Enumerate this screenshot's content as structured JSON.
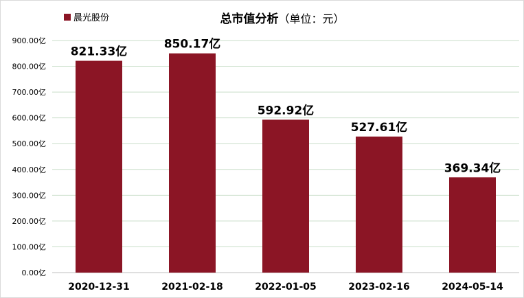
{
  "chart_data": {
    "type": "bar",
    "title": "总市值分析",
    "subtitle": "（单位：元）",
    "legend": {
      "position": "top-left"
    },
    "categories": [
      "2020-12-31",
      "2021-02-18",
      "2022-01-05",
      "2023-02-16",
      "2024-05-14"
    ],
    "series": [
      {
        "name": "晨光股份",
        "color": "#8b1525",
        "values": [
          821.33,
          850.17,
          592.92,
          527.61,
          369.34
        ],
        "labels": [
          "821.33亿",
          "850.17亿",
          "592.92亿",
          "527.61亿",
          "369.34亿"
        ]
      }
    ],
    "ylim": [
      0,
      900
    ],
    "yticks": [
      0,
      100,
      200,
      300,
      400,
      500,
      600,
      700,
      800,
      900
    ],
    "ytick_labels": [
      "0.00亿",
      "100.00亿",
      "200.00亿",
      "300.00亿",
      "400.00亿",
      "500.00亿",
      "600.00亿",
      "700.00亿",
      "800.00亿",
      "900.00亿"
    ],
    "grid": true
  }
}
